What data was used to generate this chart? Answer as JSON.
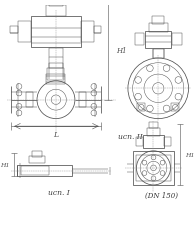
{
  "bg": "#ffffff",
  "lc": "#505050",
  "lc_thin": "#707070",
  "lc_dim": "#505050",
  "lc_dash": "#909090",
  "lw": 0.55,
  "lw_thin": 0.35,
  "lw_dim": 0.4,
  "lw_dash": 0.3,
  "label_II": "ucn. II",
  "label_I": "ucn. I",
  "label_DN": "(DN 150)",
  "label_H1": "H1",
  "label_L": "L",
  "figw": 1.95,
  "figh": 2.26,
  "dpi": 100
}
